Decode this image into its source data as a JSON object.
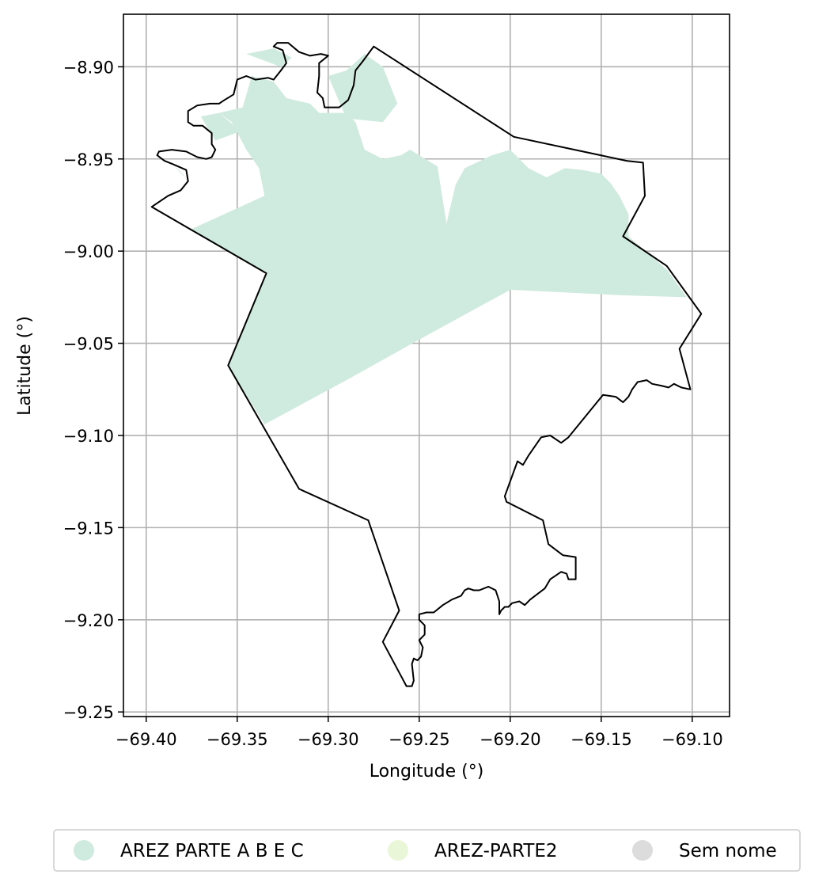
{
  "map": {
    "xlabel": "Longitude (°)",
    "ylabel": "Latitude (°)",
    "x_ticks": [
      {
        "value": -69.4,
        "label": "−69.40"
      },
      {
        "value": -69.35,
        "label": "−69.35"
      },
      {
        "value": -69.3,
        "label": "−69.30"
      },
      {
        "value": -69.25,
        "label": "−69.25"
      },
      {
        "value": -69.2,
        "label": "−69.20"
      },
      {
        "value": -69.15,
        "label": "−69.15"
      },
      {
        "value": -69.1,
        "label": "−69.10"
      }
    ],
    "y_ticks": [
      {
        "value": -8.9,
        "label": "−8.90"
      },
      {
        "value": -8.95,
        "label": "−8.95"
      },
      {
        "value": -9.0,
        "label": "−9.00"
      },
      {
        "value": -9.05,
        "label": "−9.05"
      },
      {
        "value": -9.1,
        "label": "−9.10"
      },
      {
        "value": -9.15,
        "label": "−9.15"
      },
      {
        "value": -9.2,
        "label": "−9.20"
      },
      {
        "value": -9.25,
        "label": "−9.25"
      }
    ],
    "xlim": [
      -69.4125,
      -69.0795
    ],
    "ylim": [
      -9.2525,
      -8.8715
    ],
    "grid": true,
    "boundary_color": "#000000",
    "fill_color": "#cfeade",
    "legend": {
      "position": "bottom-center",
      "items": [
        {
          "label": "AREZ PARTE A B E C",
          "color": "#cfeade"
        },
        {
          "label": "AREZ-PARTE2",
          "color": "#eaf6d8"
        },
        {
          "label": "Sem nome",
          "color": "#dcdcdc"
        }
      ]
    },
    "boundary": [
      [
        -69.397,
        -8.976
      ],
      [
        -69.388,
        -8.97
      ],
      [
        -69.381,
        -8.967
      ],
      [
        -69.377,
        -8.962
      ],
      [
        -69.378,
        -8.956
      ],
      [
        -69.385,
        -8.953
      ],
      [
        -69.39,
        -8.951
      ],
      [
        -69.394,
        -8.948
      ],
      [
        -69.393,
        -8.946
      ],
      [
        -69.386,
        -8.945
      ],
      [
        -69.378,
        -8.946
      ],
      [
        -69.372,
        -8.949
      ],
      [
        -69.367,
        -8.95
      ],
      [
        -69.364,
        -8.949
      ],
      [
        -69.362,
        -8.945
      ],
      [
        -69.364,
        -8.942
      ],
      [
        -69.364,
        -8.936
      ],
      [
        -69.369,
        -8.932
      ],
      [
        -69.374,
        -8.932
      ],
      [
        -69.377,
        -8.93
      ],
      [
        -69.377,
        -8.924
      ],
      [
        -69.372,
        -8.921
      ],
      [
        -69.365,
        -8.92
      ],
      [
        -69.36,
        -8.92
      ],
      [
        -69.357,
        -8.918
      ],
      [
        -69.352,
        -8.915
      ],
      [
        -69.35,
        -8.907
      ],
      [
        -69.345,
        -8.905
      ],
      [
        -69.34,
        -8.907
      ],
      [
        -69.333,
        -8.906
      ],
      [
        -69.33,
        -8.907
      ],
      [
        -69.326,
        -8.902
      ],
      [
        -69.323,
        -8.898
      ],
      [
        -69.325,
        -8.891
      ],
      [
        -69.33,
        -8.889
      ],
      [
        -69.328,
        -8.887
      ],
      [
        -69.322,
        -8.887
      ],
      [
        -69.316,
        -8.892
      ],
      [
        -69.31,
        -8.894
      ],
      [
        -69.304,
        -8.893
      ],
      [
        -69.3,
        -8.894
      ],
      [
        -69.305,
        -8.898
      ],
      [
        -69.305,
        -8.905
      ],
      [
        -69.306,
        -8.914
      ],
      [
        -69.303,
        -8.917
      ],
      [
        -69.302,
        -8.922
      ],
      [
        -69.294,
        -8.922
      ],
      [
        -69.289,
        -8.918
      ],
      [
        -69.286,
        -8.91
      ],
      [
        -69.285,
        -8.902
      ],
      [
        -69.281,
        -8.897
      ],
      [
        -69.275,
        -8.889
      ],
      [
        -69.198,
        -8.938
      ],
      [
        -69.136,
        -8.951
      ],
      [
        -69.127,
        -8.952
      ],
      [
        -69.126,
        -8.97
      ],
      [
        -69.138,
        -8.992
      ],
      [
        -69.114,
        -9.008
      ],
      [
        -69.095,
        -9.034
      ],
      [
        -69.107,
        -9.053
      ],
      [
        -69.101,
        -9.075
      ],
      [
        -69.106,
        -9.074
      ],
      [
        -69.11,
        -9.072
      ],
      [
        -69.113,
        -9.074
      ],
      [
        -69.117,
        -9.073
      ],
      [
        -69.122,
        -9.072
      ],
      [
        -69.125,
        -9.07
      ],
      [
        -69.13,
        -9.071
      ],
      [
        -69.133,
        -9.075
      ],
      [
        -69.135,
        -9.079
      ],
      [
        -69.138,
        -9.082
      ],
      [
        -69.142,
        -9.079
      ],
      [
        -69.149,
        -9.078
      ],
      [
        -69.168,
        -9.101
      ],
      [
        -69.172,
        -9.104
      ],
      [
        -69.178,
        -9.1
      ],
      [
        -69.183,
        -9.101
      ],
      [
        -69.19,
        -9.111
      ],
      [
        -69.193,
        -9.116
      ],
      [
        -69.196,
        -9.114
      ],
      [
        -69.203,
        -9.133
      ],
      [
        -69.202,
        -9.136
      ],
      [
        -69.182,
        -9.146
      ],
      [
        -69.179,
        -9.159
      ],
      [
        -69.171,
        -9.165
      ],
      [
        -69.164,
        -9.166
      ],
      [
        -69.164,
        -9.178
      ],
      [
        -69.168,
        -9.178
      ],
      [
        -69.169,
        -9.175
      ],
      [
        -69.172,
        -9.174
      ],
      [
        -69.175,
        -9.176
      ],
      [
        -69.178,
        -9.178
      ],
      [
        -69.181,
        -9.183
      ],
      [
        -69.185,
        -9.186
      ],
      [
        -69.189,
        -9.189
      ],
      [
        -69.192,
        -9.192
      ],
      [
        -69.195,
        -9.19
      ],
      [
        -69.199,
        -9.191
      ],
      [
        -69.201,
        -9.193
      ],
      [
        -69.203,
        -9.193
      ],
      [
        -69.205,
        -9.195
      ],
      [
        -69.206,
        -9.197
      ],
      [
        -69.206,
        -9.19
      ],
      [
        -69.208,
        -9.184
      ],
      [
        -69.212,
        -9.182
      ],
      [
        -69.217,
        -9.184
      ],
      [
        -69.22,
        -9.184
      ],
      [
        -69.223,
        -9.183
      ],
      [
        -69.225,
        -9.184
      ],
      [
        -69.227,
        -9.187
      ],
      [
        -69.232,
        -9.189
      ],
      [
        -69.237,
        -9.192
      ],
      [
        -69.242,
        -9.196
      ],
      [
        -69.246,
        -9.196
      ],
      [
        -69.25,
        -9.197
      ],
      [
        -69.25,
        -9.2
      ],
      [
        -69.247,
        -9.203
      ],
      [
        -69.247,
        -9.208
      ],
      [
        -69.25,
        -9.211
      ],
      [
        -69.248,
        -9.215
      ],
      [
        -69.249,
        -9.22
      ],
      [
        -69.251,
        -9.222
      ],
      [
        -69.253,
        -9.221
      ],
      [
        -69.254,
        -9.224
      ],
      [
        -69.253,
        -9.233
      ],
      [
        -69.254,
        -9.236
      ],
      [
        -69.257,
        -9.236
      ],
      [
        -69.27,
        -9.212
      ],
      [
        -69.261,
        -9.195
      ],
      [
        -69.278,
        -9.146
      ],
      [
        -69.316,
        -9.129
      ],
      [
        -69.355,
        -9.062
      ],
      [
        -69.334,
        -9.012
      ],
      [
        -69.397,
        -8.976
      ]
    ],
    "fill_regions": [
      [
        [
          -69.375,
          -8.988
        ],
        [
          -69.335,
          -8.97
        ],
        [
          -69.338,
          -8.955
        ],
        [
          -69.345,
          -8.945
        ],
        [
          -69.353,
          -8.93
        ],
        [
          -69.36,
          -8.925
        ],
        [
          -69.347,
          -8.922
        ],
        [
          -69.342,
          -8.905
        ],
        [
          -69.33,
          -8.908
        ],
        [
          -69.323,
          -8.917
        ],
        [
          -69.31,
          -8.92
        ],
        [
          -69.305,
          -8.925
        ],
        [
          -69.29,
          -8.925
        ],
        [
          -69.285,
          -8.93
        ],
        [
          -69.28,
          -8.945
        ],
        [
          -69.27,
          -8.95
        ],
        [
          -69.26,
          -8.948
        ],
        [
          -69.255,
          -8.945
        ],
        [
          -69.24,
          -8.954
        ],
        [
          -69.235,
          -8.985
        ],
        [
          -69.23,
          -8.964
        ],
        [
          -69.225,
          -8.955
        ],
        [
          -69.21,
          -8.948
        ],
        [
          -69.2,
          -8.945
        ],
        [
          -69.19,
          -8.955
        ],
        [
          -69.18,
          -8.96
        ],
        [
          -69.17,
          -8.955
        ],
        [
          -69.16,
          -8.956
        ],
        [
          -69.15,
          -8.958
        ],
        [
          -69.145,
          -8.963
        ],
        [
          -69.14,
          -8.97
        ],
        [
          -69.135,
          -8.98
        ],
        [
          -69.135,
          -8.992
        ],
        [
          -69.114,
          -9.01
        ],
        [
          -69.103,
          -9.025
        ],
        [
          -69.138,
          -9.024
        ],
        [
          -69.2,
          -9.021
        ],
        [
          -69.25,
          -9.048
        ],
        [
          -69.29,
          -9.07
        ],
        [
          -69.335,
          -9.094
        ],
        [
          -69.355,
          -9.062
        ],
        [
          -69.334,
          -9.012
        ],
        [
          -69.375,
          -8.988
        ]
      ],
      [
        [
          -69.388,
          -8.95
        ],
        [
          -69.377,
          -8.962
        ],
        [
          -69.381,
          -8.957
        ],
        [
          -69.388,
          -8.95
        ]
      ],
      [
        [
          -69.37,
          -8.927
        ],
        [
          -69.36,
          -8.925
        ],
        [
          -69.348,
          -8.935
        ],
        [
          -69.362,
          -8.94
        ],
        [
          -69.37,
          -8.927
        ]
      ],
      [
        [
          -69.345,
          -8.893
        ],
        [
          -69.33,
          -8.89
        ],
        [
          -69.32,
          -8.895
        ],
        [
          -69.326,
          -8.9
        ],
        [
          -69.345,
          -8.893
        ]
      ],
      [
        [
          -69.3,
          -8.905
        ],
        [
          -69.29,
          -8.902
        ],
        [
          -69.28,
          -8.893
        ],
        [
          -69.27,
          -8.9
        ],
        [
          -69.262,
          -8.92
        ],
        [
          -69.27,
          -8.93
        ],
        [
          -69.29,
          -8.928
        ],
        [
          -69.3,
          -8.905
        ]
      ]
    ]
  }
}
